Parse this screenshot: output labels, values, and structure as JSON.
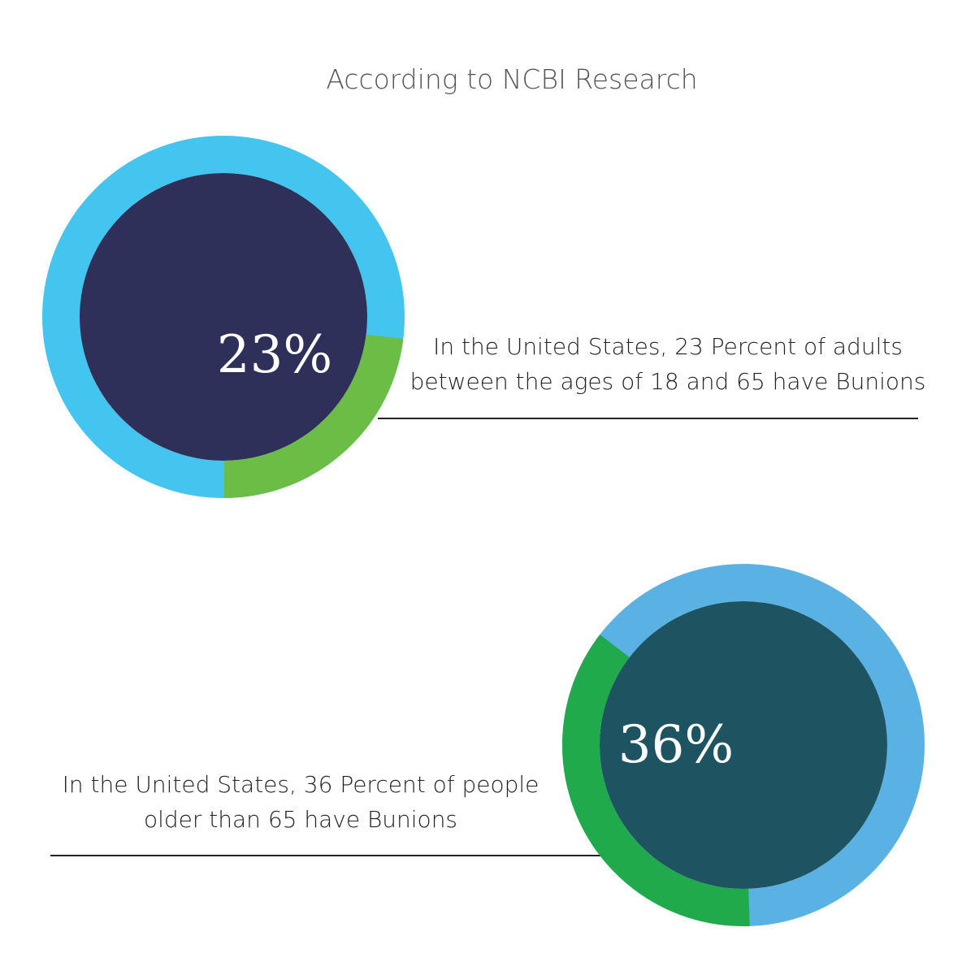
{
  "header": {
    "title": "According to NCBI Research"
  },
  "chart_data": [
    {
      "type": "donut",
      "values": [
        23
      ],
      "value_labels": [
        "23%"
      ],
      "color": "#6cbd45",
      "track_color": "#44c5ef",
      "center_color": "#2f3059",
      "caption": "In the United States, 23 Percent of adults between the ages of 18 and 65 have Bunions"
    },
    {
      "type": "donut",
      "values": [
        36
      ],
      "value_labels": [
        "36%"
      ],
      "color": "#21aa4c",
      "track_color": "#5ab1e3",
      "center_color": "#1e5362",
      "caption": "In the United States, 36 Percent of people older than 65 have Bunions"
    }
  ]
}
